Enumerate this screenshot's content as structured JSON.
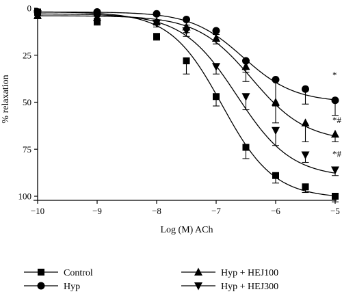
{
  "chart_data": {
    "type": "line",
    "title": "",
    "xlabel": "Log (M) ACh",
    "ylabel": "% relaxation",
    "xlim": [
      -10,
      -5
    ],
    "ylim": [
      0,
      100
    ],
    "y_inverted": true,
    "x_ticks": [
      -10,
      -9,
      -8,
      -7,
      -6,
      -5
    ],
    "x_tick_labels": [
      "−10",
      "−9",
      "−8",
      "−7",
      "−6",
      "−5"
    ],
    "y_ticks": [
      0,
      25,
      50,
      75,
      100
    ],
    "y_tick_labels": [
      "0",
      "25",
      "50",
      "75",
      "100"
    ],
    "grid": false,
    "legend_position": "bottom",
    "series": [
      {
        "name": "Control",
        "marker": "square",
        "x": [
          -10,
          -9,
          -8,
          -7.5,
          -7,
          -6.5,
          -6,
          -5.5,
          -5
        ],
        "y": [
          2,
          7,
          15,
          28,
          47,
          74,
          89,
          95,
          100
        ],
        "err": [
          1,
          2,
          2,
          7,
          5,
          6,
          4,
          3,
          3
        ],
        "fit": {
          "bottom": 2,
          "top": 101,
          "logEC50": -6.9,
          "hill": 1.0
        }
      },
      {
        "name": "Hyp",
        "marker": "circle",
        "x": [
          -10,
          -9,
          -8,
          -7.5,
          -7,
          -6.5,
          -6,
          -5.5,
          -5
        ],
        "y": [
          2,
          2,
          3,
          6,
          12,
          28,
          38,
          43,
          49
        ],
        "err": [
          1,
          1,
          1,
          3,
          2,
          6,
          14,
          8,
          8
        ],
        "fit": {
          "bottom": 2,
          "top": 50,
          "logEC50": -6.55,
          "hill": 1.0
        }
      },
      {
        "name": "Hyp + HEJ100",
        "marker": "triangle-up",
        "x": [
          -10,
          -9,
          -8,
          -7.5,
          -7,
          -6.5,
          -6,
          -5.5,
          -5
        ],
        "y": [
          4,
          5,
          7,
          10,
          16,
          31,
          50,
          61,
          67
        ],
        "err": [
          1,
          1,
          2,
          3,
          3,
          8,
          11,
          10,
          4
        ],
        "fit": {
          "bottom": 4,
          "top": 71,
          "logEC50": -6.4,
          "hill": 0.95
        }
      },
      {
        "name": "Hyp + HEJ300",
        "marker": "triangle-down",
        "x": [
          -10,
          -9,
          -8,
          -7.5,
          -7,
          -6.5,
          -6,
          -5.5,
          -5
        ],
        "y": [
          3,
          5,
          8,
          12,
          31,
          47,
          65,
          78,
          86
        ],
        "err": [
          1,
          1,
          2,
          3,
          4,
          7,
          8,
          4,
          3
        ],
        "fit": {
          "bottom": 3,
          "top": 90,
          "logEC50": -6.65,
          "hill": 0.95
        }
      }
    ],
    "annotations": [
      {
        "text": "*",
        "x": -5,
        "y": 37
      },
      {
        "text": "*#",
        "x": -5,
        "y": 61
      },
      {
        "text": "*#",
        "x": -5,
        "y": 79
      }
    ]
  }
}
